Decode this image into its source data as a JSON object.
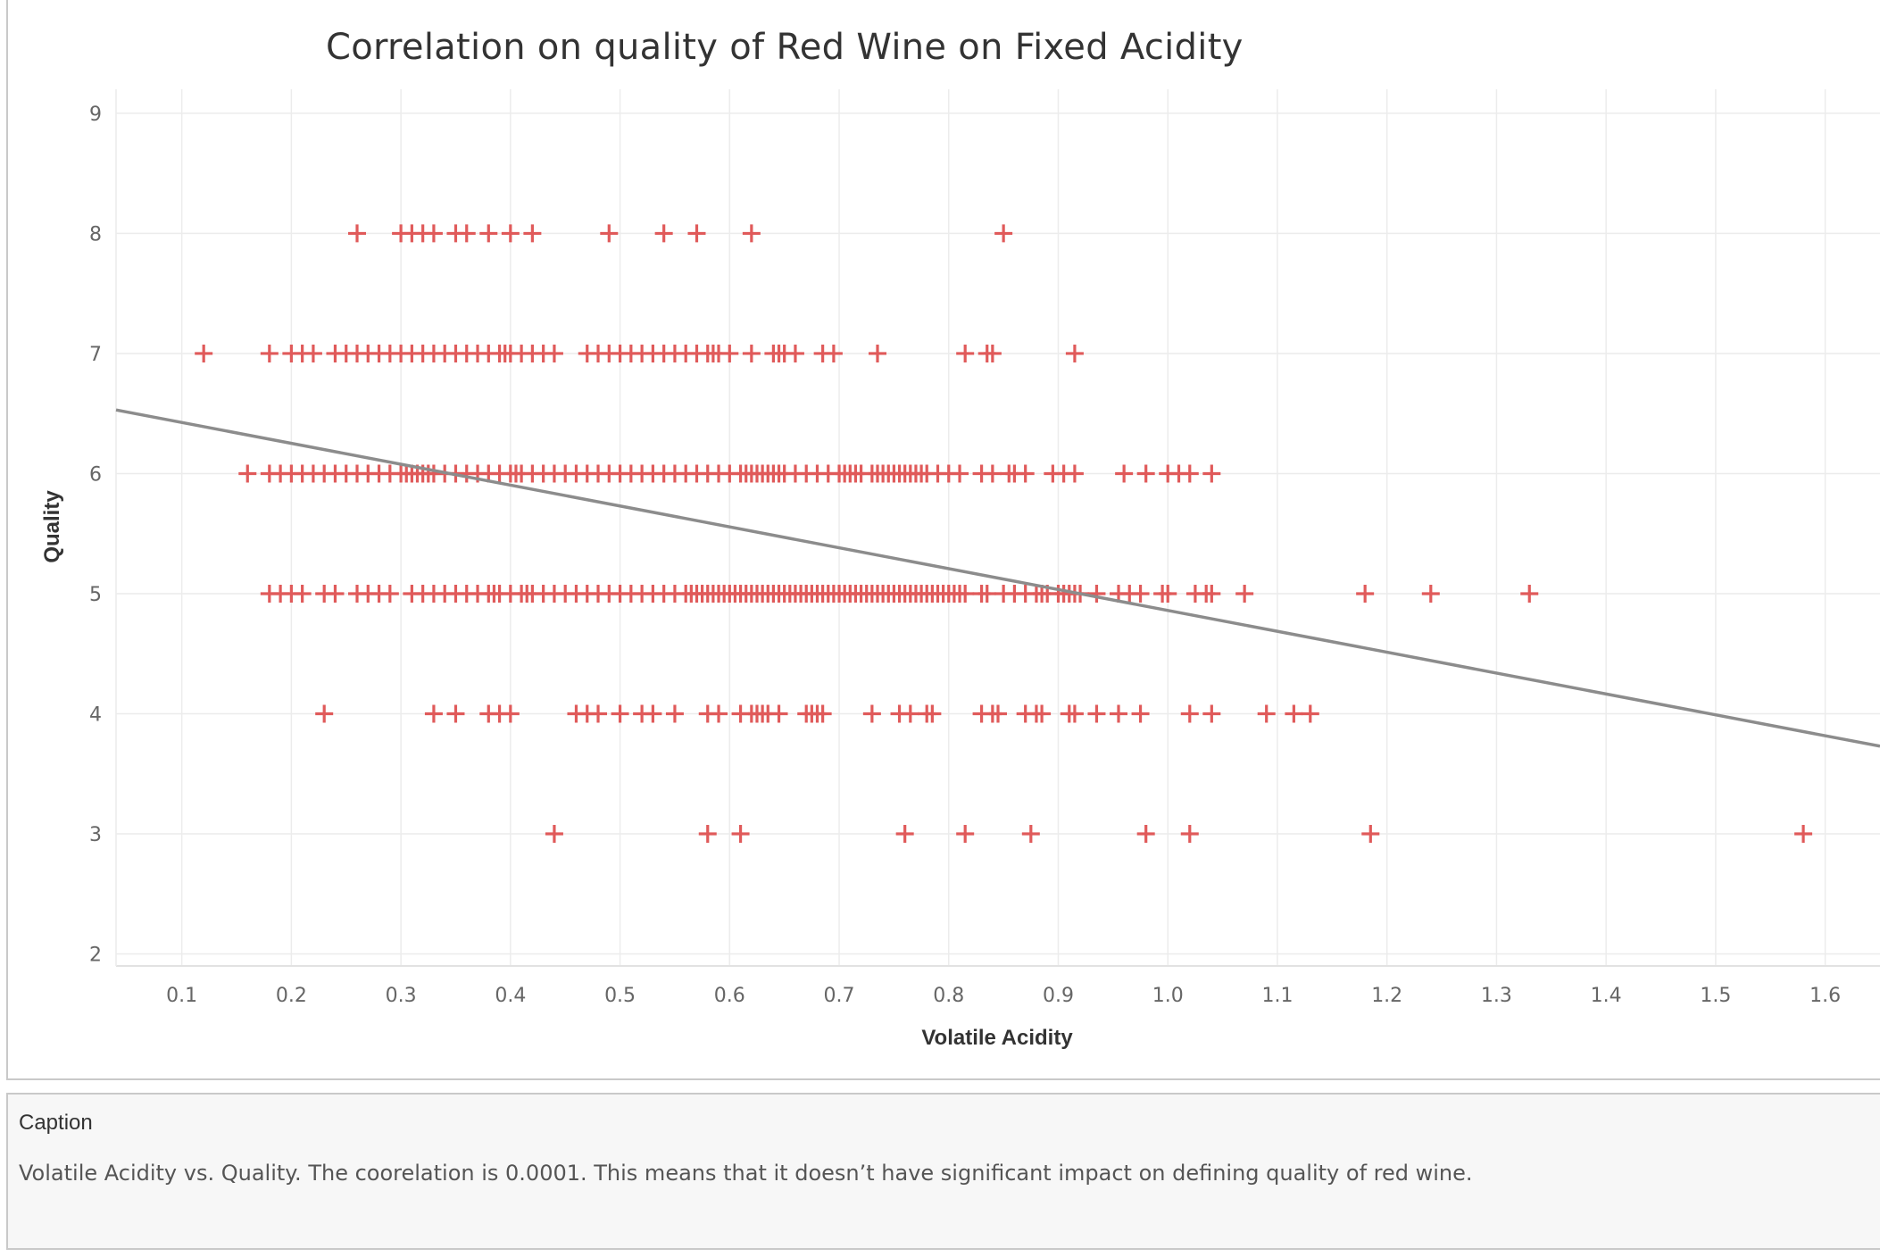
{
  "chart_data": {
    "type": "scatter",
    "title": "Correlation on quality of Red Wine on Fixed Acidity",
    "xlabel": "Volatile Acidity",
    "ylabel": "Quality",
    "xlim": [
      0.04,
      1.65
    ],
    "ylim": [
      1.9,
      9.2
    ],
    "xticks": [
      "0.1",
      "0.2",
      "0.3",
      "0.4",
      "0.5",
      "0.6",
      "0.7",
      "0.8",
      "0.9",
      "1.0",
      "1.1",
      "1.2",
      "1.3",
      "1.4",
      "1.5",
      "1.6"
    ],
    "yticks": [
      "2",
      "3",
      "4",
      "5",
      "6",
      "7",
      "8",
      "9"
    ],
    "grid": true,
    "marker_color": "#e05a5a",
    "trend_color": "#8c8c8c",
    "trend_line": {
      "x": [
        0.04,
        1.65
      ],
      "y": [
        6.53,
        3.73
      ]
    },
    "points_by_quality": [
      {
        "quality": 8,
        "x": [
          0.26,
          0.3,
          0.31,
          0.32,
          0.33,
          0.35,
          0.36,
          0.38,
          0.4,
          0.42,
          0.49,
          0.54,
          0.57,
          0.62,
          0.85
        ]
      },
      {
        "quality": 7,
        "x": [
          0.12,
          0.18,
          0.2,
          0.21,
          0.22,
          0.24,
          0.25,
          0.26,
          0.27,
          0.28,
          0.29,
          0.3,
          0.31,
          0.32,
          0.33,
          0.34,
          0.35,
          0.36,
          0.37,
          0.38,
          0.39,
          0.395,
          0.4,
          0.41,
          0.42,
          0.43,
          0.44,
          0.47,
          0.48,
          0.49,
          0.5,
          0.51,
          0.52,
          0.53,
          0.54,
          0.55,
          0.56,
          0.57,
          0.58,
          0.585,
          0.59,
          0.6,
          0.62,
          0.64,
          0.645,
          0.65,
          0.66,
          0.685,
          0.695,
          0.735,
          0.815,
          0.835,
          0.84,
          0.915
        ]
      },
      {
        "quality": 6,
        "x": [
          0.16,
          0.18,
          0.19,
          0.2,
          0.21,
          0.22,
          0.23,
          0.24,
          0.25,
          0.26,
          0.27,
          0.28,
          0.29,
          0.3,
          0.305,
          0.31,
          0.315,
          0.32,
          0.325,
          0.33,
          0.34,
          0.35,
          0.36,
          0.37,
          0.38,
          0.39,
          0.4,
          0.405,
          0.41,
          0.42,
          0.43,
          0.44,
          0.45,
          0.46,
          0.47,
          0.48,
          0.49,
          0.5,
          0.51,
          0.52,
          0.53,
          0.54,
          0.55,
          0.56,
          0.57,
          0.58,
          0.59,
          0.6,
          0.61,
          0.615,
          0.62,
          0.625,
          0.63,
          0.635,
          0.64,
          0.645,
          0.65,
          0.66,
          0.67,
          0.68,
          0.69,
          0.7,
          0.705,
          0.71,
          0.715,
          0.72,
          0.73,
          0.735,
          0.74,
          0.745,
          0.75,
          0.755,
          0.76,
          0.765,
          0.77,
          0.775,
          0.78,
          0.79,
          0.8,
          0.81,
          0.83,
          0.84,
          0.855,
          0.86,
          0.87,
          0.895,
          0.905,
          0.915,
          0.96,
          0.98,
          1.0,
          1.01,
          1.02,
          1.04
        ]
      },
      {
        "quality": 5,
        "x": [
          0.18,
          0.19,
          0.2,
          0.21,
          0.23,
          0.24,
          0.26,
          0.27,
          0.28,
          0.29,
          0.31,
          0.32,
          0.33,
          0.34,
          0.35,
          0.36,
          0.37,
          0.38,
          0.385,
          0.39,
          0.4,
          0.41,
          0.415,
          0.42,
          0.43,
          0.44,
          0.45,
          0.46,
          0.47,
          0.48,
          0.49,
          0.5,
          0.51,
          0.52,
          0.53,
          0.54,
          0.55,
          0.56,
          0.565,
          0.57,
          0.575,
          0.58,
          0.585,
          0.59,
          0.595,
          0.6,
          0.605,
          0.61,
          0.615,
          0.62,
          0.625,
          0.63,
          0.635,
          0.64,
          0.645,
          0.65,
          0.655,
          0.66,
          0.665,
          0.67,
          0.675,
          0.68,
          0.685,
          0.69,
          0.695,
          0.7,
          0.705,
          0.71,
          0.715,
          0.72,
          0.725,
          0.73,
          0.735,
          0.74,
          0.745,
          0.75,
          0.755,
          0.76,
          0.765,
          0.77,
          0.775,
          0.78,
          0.785,
          0.79,
          0.795,
          0.8,
          0.805,
          0.81,
          0.815,
          0.83,
          0.835,
          0.85,
          0.86,
          0.87,
          0.88,
          0.885,
          0.89,
          0.9,
          0.905,
          0.91,
          0.915,
          0.92,
          0.935,
          0.955,
          0.965,
          0.975,
          0.995,
          1.0,
          1.025,
          1.035,
          1.04,
          1.07,
          1.18,
          1.24,
          1.33
        ]
      },
      {
        "quality": 4,
        "x": [
          0.23,
          0.33,
          0.35,
          0.38,
          0.39,
          0.4,
          0.46,
          0.47,
          0.48,
          0.5,
          0.52,
          0.53,
          0.55,
          0.58,
          0.59,
          0.61,
          0.62,
          0.625,
          0.63,
          0.635,
          0.645,
          0.67,
          0.675,
          0.68,
          0.685,
          0.73,
          0.755,
          0.765,
          0.78,
          0.785,
          0.83,
          0.84,
          0.845,
          0.87,
          0.88,
          0.885,
          0.91,
          0.915,
          0.935,
          0.955,
          0.975,
          1.02,
          1.04,
          1.09,
          1.115,
          1.13
        ]
      },
      {
        "quality": 3,
        "x": [
          0.44,
          0.58,
          0.61,
          0.76,
          0.815,
          0.875,
          0.98,
          1.02,
          1.185,
          1.58
        ]
      }
    ]
  },
  "caption": {
    "title": "Caption",
    "text": "Volatile Acidity vs. Quality. The coorelation is 0.0001. This means that it doesn’t have significant impact on defining quality of red wine."
  }
}
